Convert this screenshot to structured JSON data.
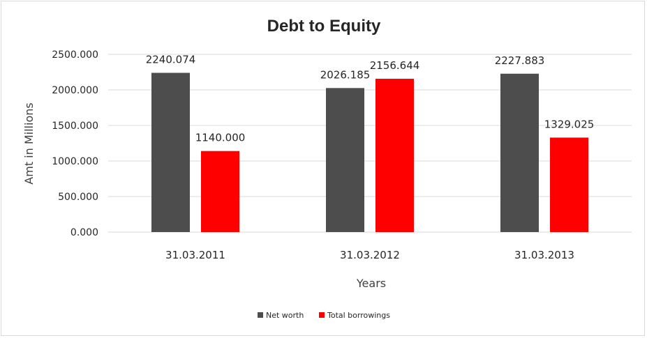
{
  "chart_data": {
    "type": "bar",
    "title": "Debt to Equity",
    "xlabel": "Years",
    "ylabel": "Amt in Millions",
    "categories": [
      "31.03.2011",
      "31.03.2012",
      "31.03.2013"
    ],
    "series": [
      {
        "name": "Net worth",
        "color": "#4d4d4d",
        "values": [
          2240.074,
          2026.185,
          2227.883
        ],
        "labels": [
          "2240.074",
          "2026.185",
          "2227.883"
        ]
      },
      {
        "name": "Total borrowings",
        "color": "#ff0000",
        "values": [
          1140.0,
          2156.644,
          1329.025
        ],
        "labels": [
          "1140.000",
          "2156.644",
          "1329.025"
        ]
      }
    ],
    "ylim": [
      0,
      2500
    ],
    "yticks": [
      0,
      500,
      1000,
      1500,
      2000,
      2500
    ],
    "ytick_labels": [
      "0.000",
      "500.000",
      "1000.000",
      "1500.000",
      "2000.000",
      "2500.000"
    ],
    "grid": true,
    "legend_position": "bottom"
  }
}
